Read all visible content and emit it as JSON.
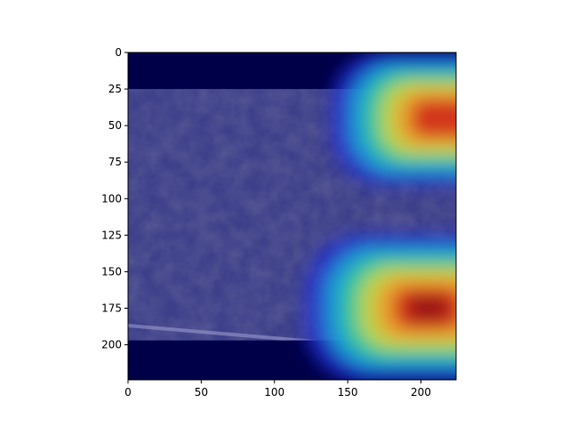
{
  "chart_data": {
    "type": "heatmap",
    "title": "",
    "xlabel": "",
    "ylabel": "",
    "xlim": [
      0,
      224
    ],
    "ylim": [
      224,
      0
    ],
    "image_size": [
      224,
      224
    ],
    "x_ticks": [
      0,
      50,
      100,
      150,
      200
    ],
    "y_ticks": [
      0,
      25,
      50,
      75,
      100,
      125,
      150,
      175,
      200
    ],
    "colormap": "jet",
    "grid": false,
    "legend": "none",
    "background_image": {
      "content": "aerial photograph of a hillside / rough terrain with a light road along the lower left",
      "padding_rows_top": [
        0,
        25
      ],
      "padding_rows_bottom": [
        197,
        224
      ],
      "padding_color": "#000046"
    },
    "hotspots": [
      {
        "x": 215,
        "y": 45,
        "intensity": 0.8
      },
      {
        "x": 205,
        "y": 175,
        "intensity": 1.0
      }
    ],
    "colors": {
      "photo_tint": "#3d3f8a",
      "dark_band": "#000048",
      "strong": "#b81d1d",
      "mid": "#f5d43c"
    }
  }
}
